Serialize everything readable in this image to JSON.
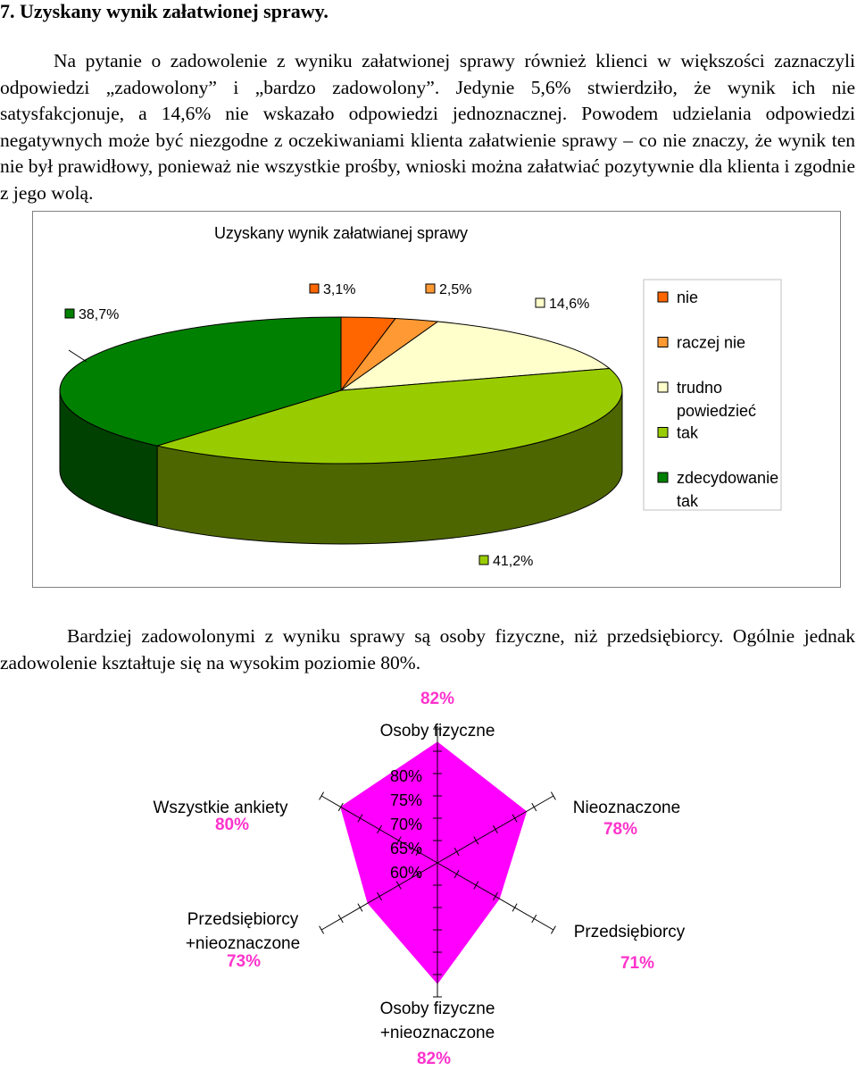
{
  "heading": "7.   Uzyskany wynik załatwionej sprawy.",
  "paragraph1": "Na pytanie o zadowolenie z wyniku załatwionej sprawy również klienci w większości zaznaczyli odpowiedzi „zadowolony” i „bardzo zadowolony”. Jedynie 5,6% stwierdziło, że wynik ich nie satysfakcjonuje, a 14,6% nie wskazało odpowiedzi jednoznacznej. Powodem udzielania odpowiedzi negatywnych może być niezgodne z oczekiwaniami klienta załatwienie sprawy – co nie znaczy, że wynik ten nie był prawidłowy, ponieważ nie wszystkie prośby, wnioski można załatwiać pozytywnie dla klienta i zgodnie z jego wolą.",
  "paragraph2": "Bardziej zadowolonymi z wyniku sprawy są osoby fizyczne, niż przedsiębiorcy. Ogólnie jednak zadowolenie kształtuje się na wysokim poziomie 80%.",
  "chart_data": [
    {
      "type": "pie",
      "title": "Uzyskany wynik załatwianej sprawy",
      "labels": [
        "nie",
        "raczej nie",
        "trudno powiedzieć",
        "tak",
        "zdecydowanie tak"
      ],
      "values": [
        3.1,
        2.5,
        14.6,
        41.2,
        38.7
      ],
      "value_labels": [
        "3,1%",
        "2,5%",
        "14,6%",
        "41,2%",
        "38,7%"
      ],
      "colors": [
        "#ff6600",
        "#ff9933",
        "#ffffcc",
        "#99cc00",
        "#008000"
      ],
      "legend": "right",
      "legend_lines": [
        [
          "nie"
        ],
        [
          "raczej nie"
        ],
        [
          "trudno",
          "powiedzieć"
        ],
        [
          "tak"
        ],
        [
          "zdecydowanie",
          "tak"
        ]
      ],
      "three_d": true
    },
    {
      "type": "radar",
      "categories": [
        "Osoby fizyczne",
        "Nieoznaczone",
        "Przedsiębiorcy",
        "Osoby fizyczne +nieoznaczone",
        "Przedsiębiorcy +nieoznaczone",
        "Wszystkie ankiety"
      ],
      "category_lines": [
        [
          "Osoby fizyczne"
        ],
        [
          "Nieoznaczone"
        ],
        [
          "Przedsiębiorcy"
        ],
        [
          "Osoby fizyczne",
          "+nieoznaczone"
        ],
        [
          "Przedsiębiorcy",
          "+nieoznaczone"
        ],
        [
          "Wszystkie ankiety"
        ]
      ],
      "values": [
        82,
        78,
        71,
        82,
        73,
        80
      ],
      "value_labels": [
        "82%",
        "78%",
        "71%",
        "82%",
        "73%",
        "80%"
      ],
      "axis_ticks": [
        "80%",
        "75%",
        "70%",
        "65%",
        "60%"
      ],
      "range": [
        55,
        85
      ],
      "fill_color": "#ff00ff",
      "label_color": "#ff33cc"
    }
  ]
}
